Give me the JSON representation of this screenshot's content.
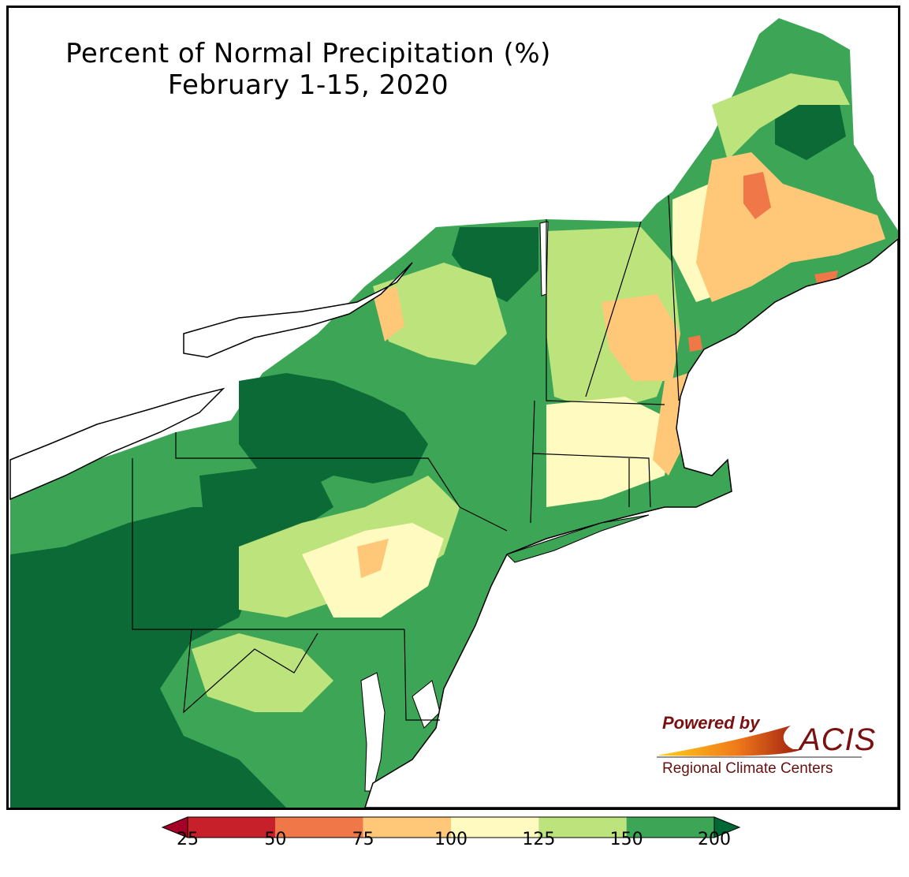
{
  "title": {
    "line1": "Percent of Normal Precipitation (%)",
    "line2": "February 1-15, 2020"
  },
  "logo": {
    "powered_by": "Powered by",
    "name": "ACIS",
    "subtitle": "Regional Climate Centers"
  },
  "legend": {
    "bins": [
      {
        "min": 25,
        "max": 50,
        "color": "#c8202a"
      },
      {
        "min": 50,
        "max": 75,
        "color": "#f07848"
      },
      {
        "min": 75,
        "max": 100,
        "color": "#fec878"
      },
      {
        "min": 100,
        "max": 125,
        "color": "#fefac0"
      },
      {
        "min": 125,
        "max": 150,
        "color": "#bde37c"
      },
      {
        "min": 150,
        "max": 200,
        "color": "#3da656"
      }
    ],
    "under_color": "#a50026",
    "over_color": "#006837",
    "tick_labels": [
      "25",
      "50",
      "75",
      "100",
      "125",
      "150",
      "200"
    ]
  },
  "map_colors": {
    "deep_green": "#0b6a35",
    "green": "#3da656",
    "light_green": "#bde37c",
    "pale_yellow": "#fefac0",
    "light_orange": "#fec878",
    "orange": "#f07848",
    "red": "#c8202a",
    "water": "#ffffff",
    "border": "#000000"
  }
}
